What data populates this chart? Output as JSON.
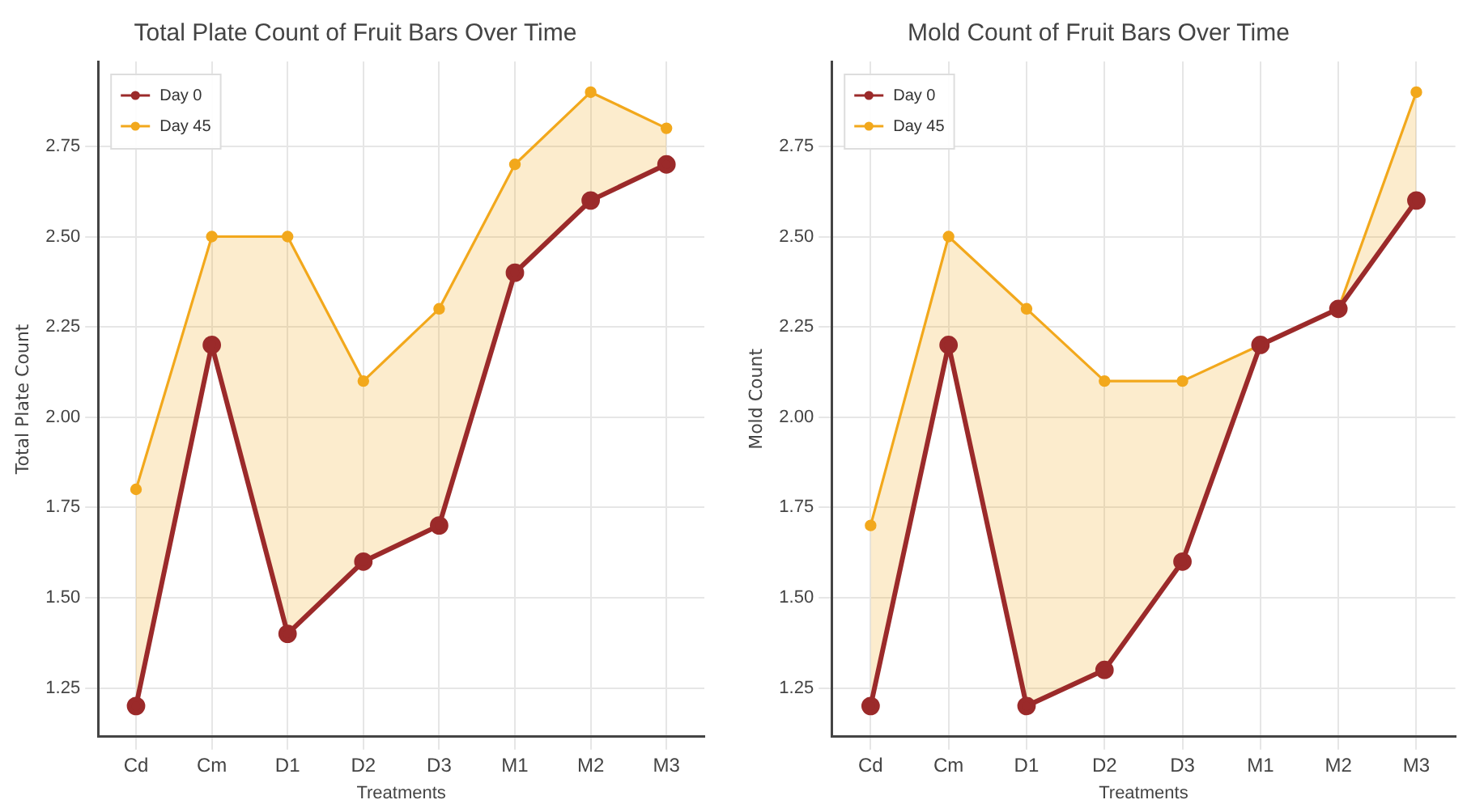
{
  "chart_data": [
    {
      "type": "line",
      "title": "Total Plate Count of Fruit Bars Over Time",
      "xlabel": "Treatments",
      "ylabel": "Total Plate Count",
      "categories": [
        "Cd",
        "Cm",
        "D1",
        "D2",
        "D3",
        "M1",
        "M2",
        "M3"
      ],
      "series": [
        {
          "name": "Day 0",
          "color": "#9b2a2a",
          "values": [
            1.2,
            2.2,
            1.4,
            1.6,
            1.7,
            2.4,
            2.6,
            2.7
          ]
        },
        {
          "name": "Day 45",
          "color": "#f2a81c",
          "values": [
            1.8,
            2.5,
            2.5,
            2.1,
            2.3,
            2.7,
            2.9,
            2.8
          ],
          "lower": [
            1.2,
            2.2,
            1.4,
            1.6,
            1.7,
            2.4,
            2.6,
            2.7
          ],
          "upper": [
            1.8,
            2.5,
            2.5,
            2.1,
            2.3,
            2.7,
            2.9,
            2.8
          ]
        }
      ],
      "ylim": [
        1.115,
        2.985
      ],
      "yticks": [
        {
          "value": 1.25,
          "label": "1.25"
        },
        {
          "value": 1.5,
          "label": "1.50"
        },
        {
          "value": 1.75,
          "label": "1.75"
        },
        {
          "value": 2,
          "label": "2.00"
        },
        {
          "value": 2.25,
          "label": "2.25"
        },
        {
          "value": 2.5,
          "label": "2.50"
        },
        {
          "value": 2.75,
          "label": "2.75"
        }
      ],
      "grid": true,
      "legend": "top left",
      "marker": "circle",
      "line_style": "solid"
    },
    {
      "type": "line",
      "title": "Mold Count of Fruit Bars Over Time",
      "xlabel": "Treatments",
      "ylabel": "Mold Count",
      "categories": [
        "Cd",
        "Cm",
        "D1",
        "D2",
        "D3",
        "M1",
        "M2",
        "M3"
      ],
      "series": [
        {
          "name": "Day 0",
          "color": "#9b2a2a",
          "values": [
            1.2,
            2.2,
            1.2,
            1.3,
            1.6,
            2.2,
            2.3,
            2.6
          ]
        },
        {
          "name": "Day 45",
          "color": "#f2a81c",
          "values": [
            1.7,
            2.5,
            2.3,
            2.1,
            2.1,
            2.2,
            2.3,
            2.9
          ],
          "lower": [
            1.2,
            2.2,
            1.2,
            1.3,
            1.6,
            2.2,
            2.3,
            2.6
          ],
          "upper": [
            1.7,
            2.5,
            2.3,
            2.1,
            2.1,
            2.2,
            2.3,
            2.9
          ]
        }
      ],
      "ylim": [
        1.115,
        2.985
      ],
      "yticks": [
        {
          "value": 1.25,
          "label": "1.25"
        },
        {
          "value": 1.5,
          "label": "1.50"
        },
        {
          "value": 1.75,
          "label": "1.75"
        },
        {
          "value": 2,
          "label": "2.00"
        },
        {
          "value": 2.25,
          "label": "2.25"
        },
        {
          "value": 2.5,
          "label": "2.50"
        },
        {
          "value": 2.75,
          "label": "2.75"
        }
      ],
      "grid": true,
      "legend": "top left",
      "marker": "circle",
      "line_style": "solid"
    }
  ]
}
